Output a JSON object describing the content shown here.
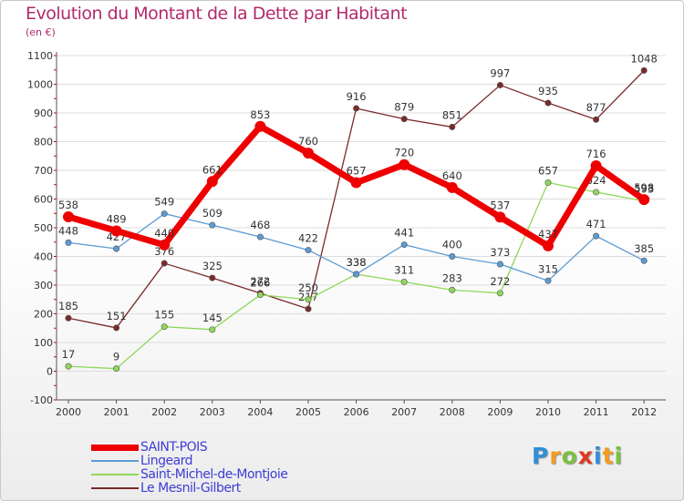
{
  "title": "Evolution du Montant de la Dette par Habitant",
  "subtitle": "(en €)",
  "brand": {
    "text": "Proxiti",
    "letters": [
      {
        "ch": "P",
        "color": "#2f8fd8"
      },
      {
        "ch": "r",
        "color": "#f39a1f"
      },
      {
        "ch": "o",
        "color": "#7bc142"
      },
      {
        "ch": "x",
        "color": "#e0381f"
      },
      {
        "ch": "i",
        "color": "#2f8fd8"
      },
      {
        "ch": "t",
        "color": "#f39a1f"
      },
      {
        "ch": "i",
        "color": "#7bc142"
      }
    ]
  },
  "colors": {
    "title": "#b22a6b",
    "legend_text": "#3d3dd6",
    "axis": "#555555",
    "grid": "#dddddd",
    "tick_red": "#cc0000"
  },
  "chart_data": {
    "type": "line",
    "x": [
      "2000",
      "2001",
      "2002",
      "2003",
      "2004",
      "2005",
      "2006",
      "2007",
      "2008",
      "2009",
      "2010",
      "2011",
      "2012"
    ],
    "ylim": [
      -100,
      1100
    ],
    "yticks": [
      "-100",
      "0",
      "100",
      "200",
      "300",
      "400",
      "500",
      "600",
      "700",
      "800",
      "900",
      "1000",
      "1100"
    ],
    "grid": "horizontal",
    "legend_position": "bottom-left",
    "series": [
      {
        "name": "SAINT-POIS",
        "color": "#ee0000",
        "width": 7,
        "values": [
          538,
          489,
          440,
          661,
          853,
          760,
          657,
          720,
          640,
          537,
          437,
          716,
          598
        ],
        "labels": [
          "538",
          "489",
          "440",
          "661",
          "853",
          "760",
          "657",
          "720",
          "640",
          "537",
          "437",
          "716",
          "598"
        ]
      },
      {
        "name": "Lingeard",
        "color": "#5b9bd5",
        "width": 1.3,
        "values": [
          448,
          427,
          549,
          509,
          468,
          422,
          338,
          441,
          400,
          373,
          315,
          471,
          385
        ],
        "labels": [
          "448",
          "427",
          "549",
          "509",
          "468",
          "422",
          "338",
          "441",
          "400",
          "373",
          "315",
          "471",
          "385"
        ]
      },
      {
        "name": "Saint-Michel-de-Montjoie",
        "color": "#8ed85a",
        "width": 1.3,
        "values": [
          17,
          9,
          155,
          145,
          266,
          250,
          338,
          311,
          283,
          272,
          657,
          624,
          593
        ],
        "labels": [
          "17",
          "9",
          "155",
          "145",
          "266",
          "250",
          "338",
          "311",
          "283",
          "272",
          "657",
          "624",
          "593"
        ]
      },
      {
        "name": "Le Mesnil-Gilbert",
        "color": "#7a2a2a",
        "width": 1.3,
        "values": [
          185,
          151,
          376,
          325,
          272,
          217,
          916,
          879,
          851,
          997,
          935,
          877,
          1048
        ],
        "labels": [
          "185",
          "151",
          "376",
          "325",
          "272",
          "217",
          "916",
          "879",
          "851",
          "997",
          "935",
          "877",
          "1048"
        ]
      }
    ]
  }
}
